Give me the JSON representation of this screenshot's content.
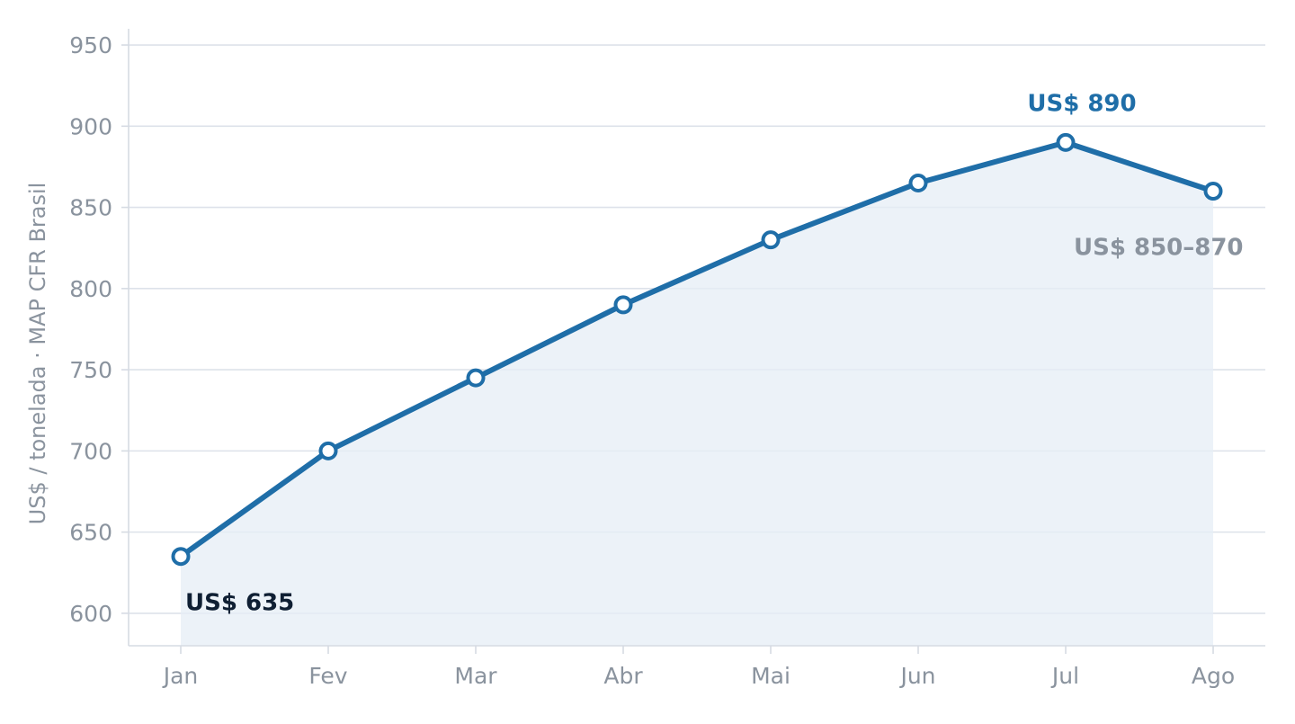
{
  "chart_data": {
    "type": "area",
    "categories": [
      "Jan",
      "Fev",
      "Mar",
      "Abr",
      "Mai",
      "Jun",
      "Jul",
      "Ago"
    ],
    "series": [
      {
        "values": [
          635,
          700,
          745,
          790,
          830,
          865,
          890,
          860
        ]
      }
    ],
    "ylabel": "US$ / tonelada · MAP CFR Brasil",
    "xlabel": "",
    "ylim": [
      580,
      960
    ],
    "yticks": [
      600,
      650,
      700,
      750,
      800,
      850,
      900,
      950
    ],
    "grid": "horizontal",
    "annotations": [
      {
        "category": "Jan",
        "text": "US$ 635",
        "style": "dark"
      },
      {
        "category": "Jul",
        "text": "US$ 890",
        "style": "accent"
      },
      {
        "category": "Ago",
        "text": "US$ 850–870",
        "style": "muted"
      }
    ],
    "colors": {
      "line": "#1f6ea8",
      "area": "#e6eef6",
      "grid": "#dde2ea",
      "axis": "#d6dbe3",
      "tick_text": "#8a939e",
      "anno_dark": "#0f1f33",
      "anno_accent": "#1f6ea8",
      "anno_muted": "#8a939e"
    }
  }
}
